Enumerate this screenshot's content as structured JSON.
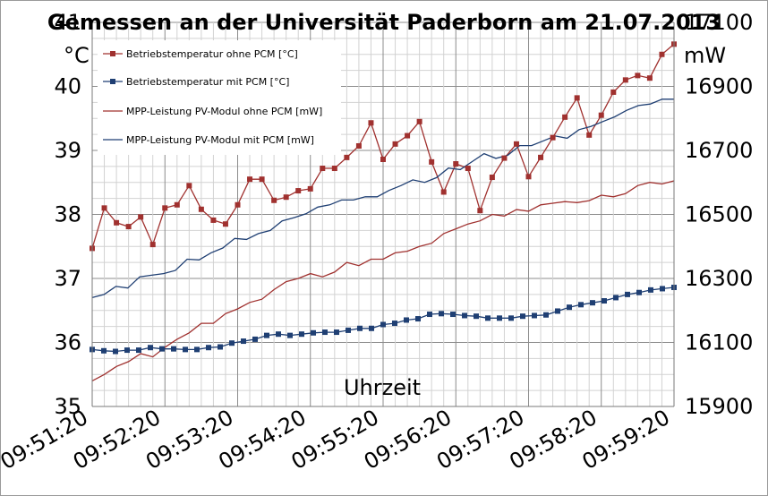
{
  "chart_data": {
    "type": "line",
    "title": "Gemessen an der Universität Paderborn am 21.07.2013",
    "xlabel": "Uhrzeit",
    "ylabel_left": "°C",
    "ylabel_right": "mW",
    "y_left_lim": [
      35,
      41
    ],
    "y_left_ticks": [
      "35",
      "36",
      "37",
      "38",
      "39",
      "40",
      "41"
    ],
    "y_right_lim": [
      15900,
      17100
    ],
    "y_right_ticks": [
      "15900",
      "16100",
      "16300",
      "16500",
      "16700",
      "16900",
      "17100"
    ],
    "x_ticks": [
      "09:51:20",
      "09:52:20",
      "09:53:20",
      "09:54:20",
      "09:55:20",
      "09:56:20",
      "09:57:20",
      "09:58:20",
      "09:59:20"
    ],
    "grid": true,
    "legend_position": "top-left",
    "series": [
      {
        "name": "Betriebstemperatur ohne PCM [°C]",
        "axis": "left",
        "color": "#a0312f",
        "marker": "square",
        "values": [
          37.47,
          38.1,
          37.87,
          37.81,
          37.96,
          37.53,
          38.1,
          38.15,
          38.45,
          38.08,
          37.91,
          37.85,
          38.15,
          38.55,
          38.55,
          38.22,
          38.27,
          38.37,
          38.4,
          38.72,
          38.72,
          38.89,
          39.07,
          39.43,
          38.86,
          39.1,
          39.23,
          39.45,
          38.82,
          38.35,
          38.79,
          38.72,
          38.06,
          38.58,
          38.88,
          39.1,
          38.59,
          38.89,
          39.2,
          39.52,
          39.82,
          39.24,
          39.55,
          39.91,
          40.1,
          40.17,
          40.13,
          40.5,
          40.66
        ]
      },
      {
        "name": "Betriebstemperatur mit PCM [°C]",
        "axis": "left",
        "color": "#1f3f73",
        "marker": "square",
        "values": [
          35.89,
          35.87,
          35.86,
          35.88,
          35.88,
          35.92,
          35.9,
          35.9,
          35.89,
          35.89,
          35.92,
          35.93,
          35.99,
          36.02,
          36.05,
          36.11,
          36.13,
          36.11,
          36.13,
          36.15,
          36.16,
          36.16,
          36.19,
          36.22,
          36.22,
          36.28,
          36.3,
          36.35,
          36.37,
          36.44,
          36.45,
          36.44,
          36.42,
          36.41,
          36.38,
          36.38,
          36.38,
          36.41,
          36.42,
          36.43,
          36.49,
          36.55,
          36.59,
          36.62,
          36.65,
          36.7,
          36.75,
          36.78,
          36.82,
          36.84,
          36.86
        ]
      },
      {
        "name": "MPP-Leistung PV-Modul ohne PCM [mW]",
        "axis": "right",
        "color": "#a0312f",
        "marker": "none",
        "values": [
          15980,
          16000,
          16025,
          16040,
          16065,
          16055,
          16085,
          16110,
          16130,
          16160,
          16160,
          16190,
          16205,
          16225,
          16235,
          16265,
          16290,
          16300,
          16315,
          16305,
          16320,
          16350,
          16340,
          16360,
          16360,
          16380,
          16385,
          16400,
          16410,
          16440,
          16455,
          16470,
          16480,
          16500,
          16495,
          16515,
          16510,
          16530,
          16535,
          16540,
          16537,
          16543,
          16560,
          16555,
          16565,
          16590,
          16600,
          16595,
          16605
        ]
      },
      {
        "name": "MPP-Leistung PV-Modul mit PCM [mW]",
        "axis": "right",
        "color": "#1f3f73",
        "marker": "none",
        "values": [
          16240,
          16250,
          16275,
          16270,
          16305,
          16310,
          16315,
          16325,
          16360,
          16358,
          16380,
          16395,
          16425,
          16422,
          16440,
          16450,
          16480,
          16490,
          16502,
          16523,
          16530,
          16545,
          16545,
          16555,
          16555,
          16575,
          16590,
          16608,
          16600,
          16615,
          16645,
          16640,
          16665,
          16690,
          16675,
          16685,
          16715,
          16715,
          16730,
          16745,
          16738,
          16765,
          16775,
          16790,
          16805,
          16825,
          16840,
          16845,
          16860,
          16860
        ]
      }
    ]
  }
}
